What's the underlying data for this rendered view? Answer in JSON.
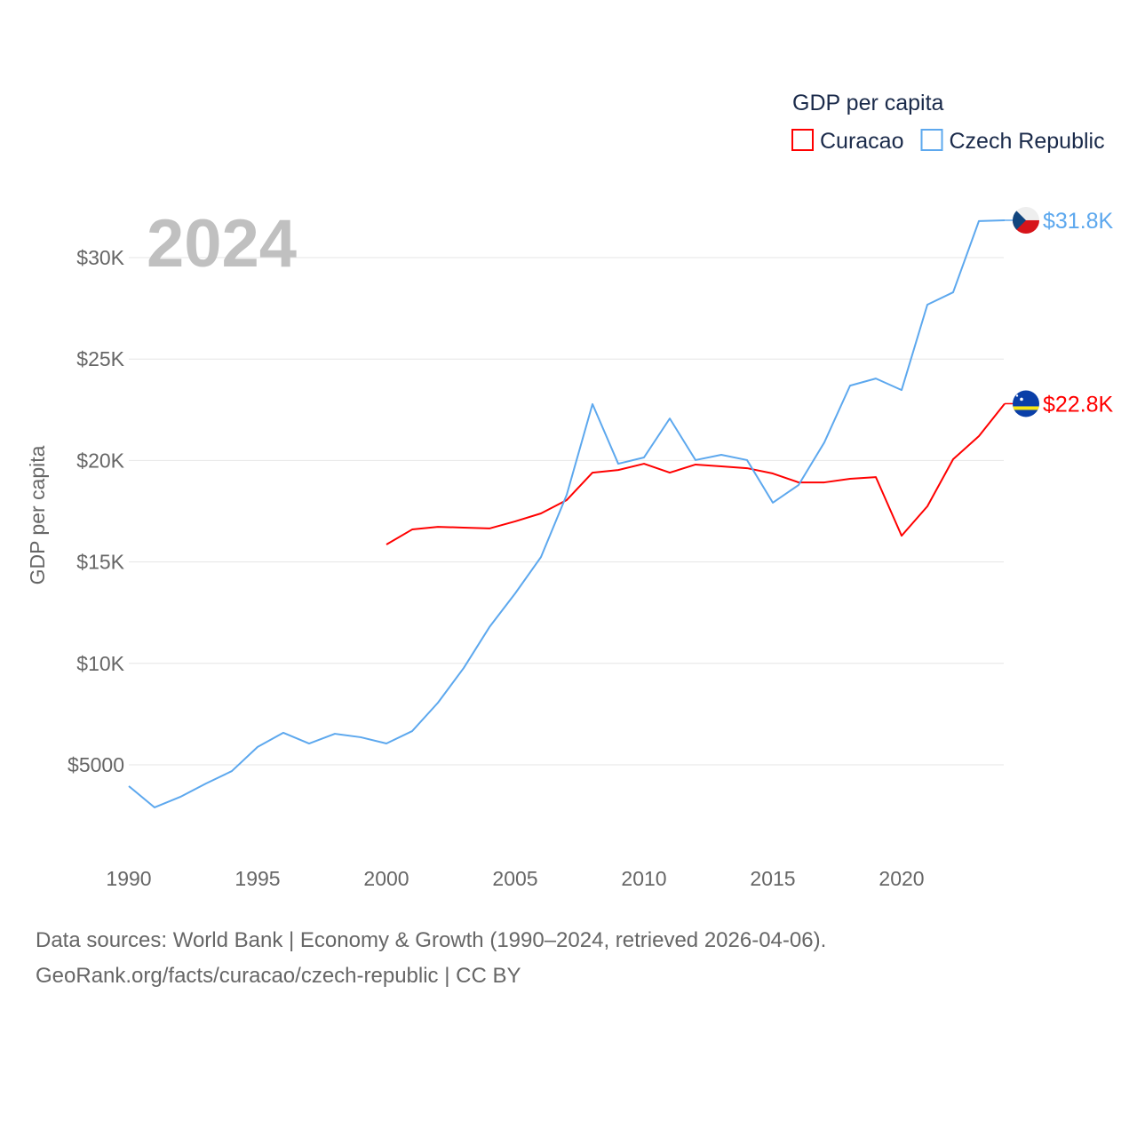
{
  "chart_data": {
    "type": "line",
    "title": "GDP per capita",
    "year_label": "2024",
    "ylabel": "GDP per capita",
    "xlabel": "",
    "xlim": [
      1990,
      2024
    ],
    "ylim": [
      0,
      33000
    ],
    "x_ticks": [
      "1990",
      "1995",
      "2000",
      "2005",
      "2010",
      "2015",
      "2020"
    ],
    "y_ticks": [
      {
        "value": 5000,
        "label": "$5000"
      },
      {
        "value": 10000,
        "label": "$10K"
      },
      {
        "value": 15000,
        "label": "$15K"
      },
      {
        "value": 20000,
        "label": "$20K"
      },
      {
        "value": 25000,
        "label": "$25K"
      },
      {
        "value": 30000,
        "label": "$30K"
      }
    ],
    "grid": true,
    "legend_placement": "top-right",
    "series": [
      {
        "name": "Curacao",
        "color": "#ff0000",
        "end_label": "$22.8K",
        "flag": "curacao-flag",
        "x": [
          2000,
          2001,
          2002,
          2003,
          2004,
          2005,
          2006,
          2007,
          2008,
          2009,
          2010,
          2011,
          2012,
          2013,
          2014,
          2015,
          2016,
          2017,
          2018,
          2019,
          2020,
          2021,
          2022,
          2023,
          2024
        ],
        "values": [
          15860,
          16600,
          16730,
          16690,
          16650,
          17000,
          17390,
          18050,
          19400,
          19530,
          19840,
          19400,
          19800,
          19710,
          19620,
          19360,
          18920,
          18920,
          19100,
          19180,
          16290,
          17740,
          20060,
          21200,
          22800
        ]
      },
      {
        "name": "Czech Republic",
        "color": "#5da8ee",
        "end_label": "$31.8K",
        "flag": "czech-flag",
        "x": [
          1990,
          1991,
          1992,
          1993,
          1994,
          1995,
          1996,
          1997,
          1998,
          1999,
          2000,
          2001,
          2002,
          2003,
          2004,
          2005,
          2006,
          2007,
          2008,
          2009,
          2010,
          2011,
          2012,
          2013,
          2014,
          2015,
          2016,
          2017,
          2018,
          2019,
          2020,
          2021,
          2022,
          2023,
          2024
        ],
        "values": [
          3950,
          2900,
          3420,
          4080,
          4690,
          5880,
          6580,
          6050,
          6530,
          6360,
          6050,
          6660,
          8060,
          9770,
          11790,
          13450,
          15240,
          18310,
          22780,
          19840,
          20150,
          22070,
          20020,
          20280,
          20020,
          17920,
          18790,
          20890,
          23690,
          24040,
          23470,
          27680,
          28290,
          31800,
          31840
        ]
      }
    ]
  },
  "footer": {
    "line1": "Data sources: World Bank | Economy & Growth (1990–2024, retrieved 2026-04-06).",
    "line2": "GeoRank.org/facts/curacao/czech-republic | CC BY"
  }
}
